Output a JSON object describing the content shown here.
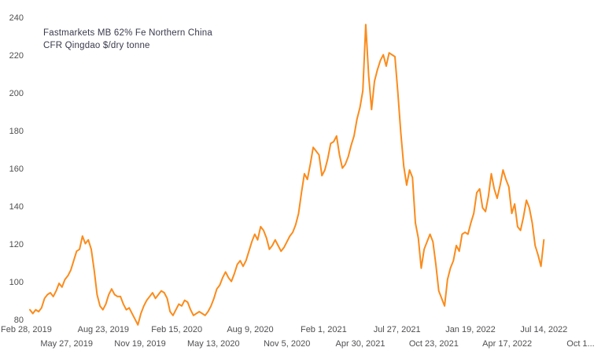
{
  "chart": {
    "legend_line1": "Fastmarkets MB 62% Fe Northern China",
    "legend_line2": "CFR Qingdao $/dry tonne"
  },
  "chart_data": {
    "type": "line",
    "title": "Fastmarkets MB 62% Fe Northern China CFR Qingdao $/dry tonne",
    "line_color": "#FB8B1B",
    "grid": false,
    "legend_position": "top-left",
    "ylim": [
      80,
      240
    ],
    "y_ticks": [
      80,
      100,
      120,
      140,
      160,
      180,
      200,
      220,
      240
    ],
    "x_axis": {
      "start_date": "2019-02-28",
      "tick_interval_days": 88,
      "tick_labels": [
        "Feb 28, 2019",
        "May 27, 2019",
        "Aug 23, 2019",
        "Nov 19, 2019",
        "Feb 15, 2020",
        "May 13, 2020",
        "Aug 9, 2020",
        "Nov 5, 2020",
        "Feb 1, 2021",
        "Apr 30, 2021",
        "Jul 27, 2021",
        "Oct 23, 2021",
        "Jan 19, 2022",
        "Apr 17, 2022",
        "Jul 14, 2022",
        "Oct 1..."
      ]
    },
    "series": [
      {
        "name": "Fastmarkets MB 62% Fe Northern China CFR Qingdao $/dry tonne",
        "unit": "$/dry tonne",
        "start_date": "2019-02-28",
        "interval_days": 7,
        "values": [
          86,
          84,
          86,
          85,
          87,
          92,
          94,
          95,
          93,
          96,
          100,
          98,
          102,
          104,
          107,
          112,
          117,
          118,
          125,
          121,
          123,
          118,
          107,
          94,
          88,
          86,
          89,
          94,
          97,
          94,
          93,
          93,
          89,
          86,
          87,
          84,
          81,
          78,
          84,
          88,
          91,
          93,
          95,
          92,
          94,
          96,
          95,
          92,
          85,
          83,
          86,
          89,
          88,
          91,
          90,
          86,
          83,
          84,
          85,
          84,
          83,
          85,
          88,
          92,
          97,
          99,
          103,
          106,
          103,
          101,
          105,
          110,
          112,
          109,
          112,
          117,
          122,
          126,
          123,
          130,
          128,
          124,
          118,
          120,
          123,
          120,
          117,
          119,
          122,
          125,
          127,
          131,
          137,
          148,
          158,
          155,
          163,
          172,
          170,
          168,
          157,
          160,
          166,
          174,
          175,
          178,
          168,
          161,
          163,
          167,
          173,
          178,
          187,
          193,
          202,
          237,
          210,
          192,
          207,
          213,
          218,
          221,
          215,
          222,
          221,
          220,
          201,
          180,
          162,
          152,
          160,
          156,
          132,
          124,
          108,
          118,
          122,
          126,
          122,
          110,
          96,
          92,
          88,
          102,
          108,
          112,
          120,
          117,
          126,
          127,
          126,
          132,
          137,
          148,
          150,
          140,
          138,
          146,
          158,
          150,
          145,
          152,
          160,
          155,
          151,
          137,
          142,
          130,
          128,
          135,
          144,
          140,
          132,
          120,
          115,
          109,
          123
        ]
      }
    ]
  }
}
